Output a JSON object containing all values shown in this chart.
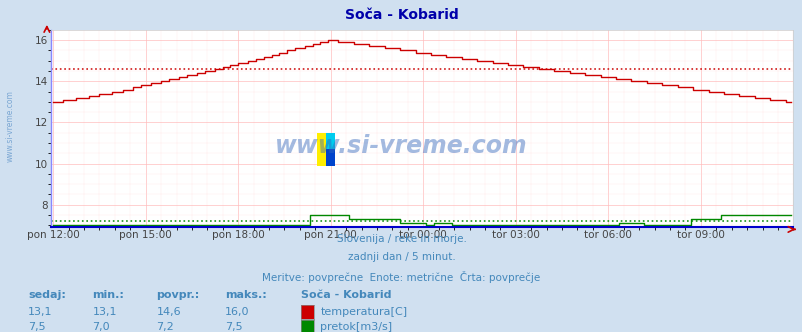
{
  "title": "Soča - Kobarid",
  "bg_color": "#d0e0f0",
  "plot_bg_color": "#ffffff",
  "grid_color_major": "#ffbbbb",
  "grid_color_minor": "#ffdddd",
  "x_tick_labels": [
    "pon 12:00",
    "pon 15:00",
    "pon 18:00",
    "pon 21:00",
    "tor 00:00",
    "tor 03:00",
    "tor 06:00",
    "tor 09:00"
  ],
  "x_tick_positions": [
    0,
    36,
    72,
    108,
    144,
    180,
    216,
    252
  ],
  "total_points": 288,
  "y_temp_min": 7.0,
  "y_temp_max": 16.5,
  "y_temp_ticks": [
    8,
    10,
    12,
    14,
    16
  ],
  "temp_avg_line": 14.6,
  "temp_color": "#cc0000",
  "flow_color": "#008800",
  "flow_avg_line": 7.2,
  "subtitle_lines": [
    "Slovenija / reke in morje.",
    "zadnji dan / 5 minut.",
    "Meritve: povprečne  Enote: metrične  Črta: povprečje"
  ],
  "subtitle_color": "#4488bb",
  "title_color": "#0000aa",
  "watermark_text": "www.si-vreme.com",
  "watermark_color": "#3366bb",
  "left_label_color": "#6699cc",
  "table_headers": [
    "sedaj:",
    "min.:",
    "povpr.:",
    "maks.:"
  ],
  "table_row1": [
    "13,1",
    "13,1",
    "14,6",
    "16,0"
  ],
  "table_row2": [
    "7,5",
    "7,0",
    "7,2",
    "7,5"
  ],
  "legend_title": "Soča - Kobarid",
  "legend_row1": "temperatura[C]",
  "legend_row2": "pretok[m3/s]",
  "axis_border_color": "#8888ff",
  "bottom_border_color": "#0000cc"
}
